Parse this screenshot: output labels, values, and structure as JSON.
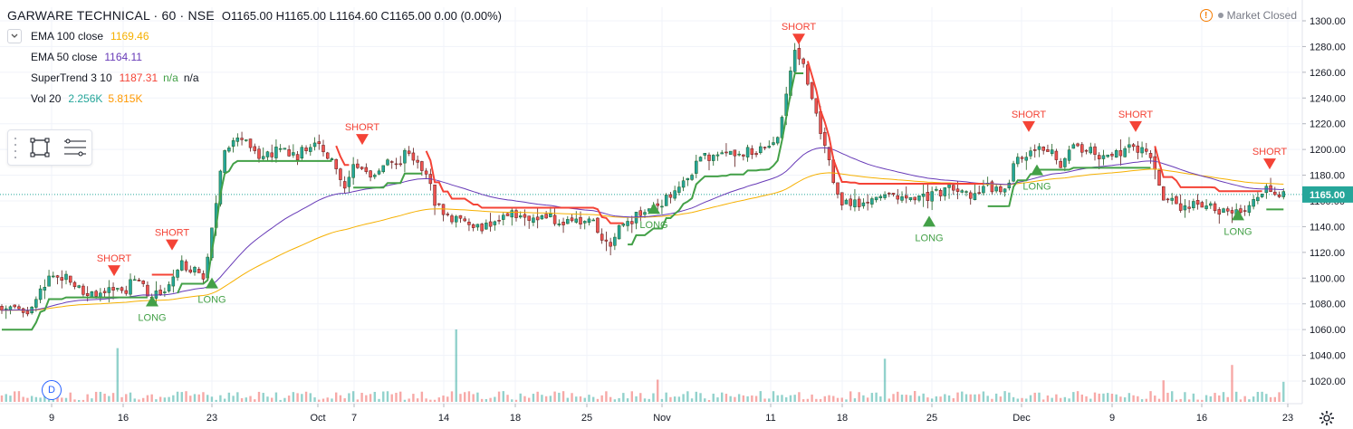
{
  "header": {
    "symbol": "GARWARE TECHNICAL · 60 · NSE",
    "ohlc": "O1165.00  H1165.00  L1164.60  C1165.00  0.00 (0.00%)"
  },
  "indicators": [
    {
      "name": "EMA 100 close",
      "value": "1169.46",
      "color": "#f6b000"
    },
    {
      "name": "EMA 50 close",
      "value": "1164.11",
      "color": "#673ab7"
    },
    {
      "name": "SuperTrend 3 10",
      "value": "1187.31",
      "extra1": "n/a",
      "extra2": "n/a",
      "color": "#f44336"
    },
    {
      "name": "Vol 20",
      "value": "2.256K",
      "value2": "5.815K",
      "color": "#26a69a",
      "color2": "#ff9800"
    }
  ],
  "market_status": "Market Closed",
  "interval_badge": "D",
  "colors": {
    "up": "#26a69a",
    "down": "#ef5350",
    "ema100": "#f6b000",
    "ema50": "#673ab7",
    "st_bear": "#f44336",
    "st_bull": "#43a047"
  },
  "chart_data": {
    "type": "candlestick",
    "yaxis_ticks": [
      "1300.00",
      "1280.00",
      "1260.00",
      "1240.00",
      "1220.00",
      "1200.00",
      "1180.00",
      "1160.00",
      "1140.00",
      "1120.00",
      "1100.00",
      "1080.00",
      "1060.00",
      "1040.00",
      "1020.00"
    ],
    "ylim": [
      1008,
      1302
    ],
    "last_price": "1165.00",
    "xaxis_ticks": [
      "9",
      "16",
      "23",
      "Oct",
      "7",
      "14",
      "18",
      "25",
      "Nov",
      "11",
      "18",
      "25",
      "Dec",
      "9",
      "16",
      "23"
    ],
    "signals": [
      {
        "label": "SHORT",
        "price": 1110
      },
      {
        "label": "LONG",
        "price": 1078
      },
      {
        "label": "SHORT",
        "price": 1130
      },
      {
        "label": "LONG",
        "price": 1092
      },
      {
        "label": "SHORT",
        "price": 1212
      },
      {
        "label": "LONG",
        "price": 1150
      },
      {
        "label": "SHORT",
        "price": 1290
      },
      {
        "label": "LONG",
        "price": 1140
      },
      {
        "label": "SHORT",
        "price": 1222
      },
      {
        "label": "LONG",
        "price": 1180
      },
      {
        "label": "SHORT",
        "price": 1222
      },
      {
        "label": "LONG",
        "price": 1145
      },
      {
        "label": "SHORT",
        "price": 1193
      }
    ],
    "price_path": [
      {
        "t": 0,
        "p": 1078
      },
      {
        "t": 3,
        "p": 1073
      },
      {
        "t": 5,
        "p": 1100
      },
      {
        "t": 7,
        "p": 1102
      },
      {
        "t": 9,
        "p": 1088
      },
      {
        "t": 11,
        "p": 1085
      },
      {
        "t": 13,
        "p": 1092
      },
      {
        "t": 15,
        "p": 1098
      },
      {
        "t": 16,
        "p": 1082
      },
      {
        "t": 18,
        "p": 1090
      },
      {
        "t": 19,
        "p": 1110
      },
      {
        "t": 21,
        "p": 1108
      },
      {
        "t": 22,
        "p": 1098
      },
      {
        "t": 23,
        "p": 1150
      },
      {
        "t": 24,
        "p": 1200
      },
      {
        "t": 26,
        "p": 1210
      },
      {
        "t": 28,
        "p": 1195
      },
      {
        "t": 30,
        "p": 1200
      },
      {
        "t": 32,
        "p": 1195
      },
      {
        "t": 34,
        "p": 1205
      },
      {
        "t": 36,
        "p": 1190
      },
      {
        "t": 37,
        "p": 1170
      },
      {
        "t": 38,
        "p": 1185
      },
      {
        "t": 40,
        "p": 1180
      },
      {
        "t": 42,
        "p": 1190
      },
      {
        "t": 44,
        "p": 1195
      },
      {
        "t": 46,
        "p": 1180
      },
      {
        "t": 47,
        "p": 1160
      },
      {
        "t": 48,
        "p": 1150
      },
      {
        "t": 50,
        "p": 1145
      },
      {
        "t": 52,
        "p": 1138
      },
      {
        "t": 54,
        "p": 1145
      },
      {
        "t": 56,
        "p": 1150
      },
      {
        "t": 58,
        "p": 1148
      },
      {
        "t": 60,
        "p": 1146
      },
      {
        "t": 62,
        "p": 1143
      },
      {
        "t": 64,
        "p": 1145
      },
      {
        "t": 66,
        "p": 1120
      },
      {
        "t": 67,
        "p": 1140
      },
      {
        "t": 69,
        "p": 1150
      },
      {
        "t": 71,
        "p": 1155
      },
      {
        "t": 73,
        "p": 1170
      },
      {
        "t": 75,
        "p": 1185
      },
      {
        "t": 76,
        "p": 1195
      },
      {
        "t": 78,
        "p": 1198
      },
      {
        "t": 80,
        "p": 1200
      },
      {
        "t": 82,
        "p": 1198
      },
      {
        "t": 84,
        "p": 1205
      },
      {
        "t": 85,
        "p": 1240
      },
      {
        "t": 86,
        "p": 1280
      },
      {
        "t": 87,
        "p": 1265
      },
      {
        "t": 88,
        "p": 1235
      },
      {
        "t": 89,
        "p": 1210
      },
      {
        "t": 90,
        "p": 1180
      },
      {
        "t": 91,
        "p": 1160
      },
      {
        "t": 93,
        "p": 1155
      },
      {
        "t": 95,
        "p": 1162
      },
      {
        "t": 97,
        "p": 1165
      },
      {
        "t": 99,
        "p": 1160
      },
      {
        "t": 101,
        "p": 1165
      },
      {
        "t": 103,
        "p": 1170
      },
      {
        "t": 105,
        "p": 1165
      },
      {
        "t": 107,
        "p": 1170
      },
      {
        "t": 109,
        "p": 1168
      },
      {
        "t": 110,
        "p": 1195
      },
      {
        "t": 112,
        "p": 1200
      },
      {
        "t": 114,
        "p": 1198
      },
      {
        "t": 115,
        "p": 1185
      },
      {
        "t": 116,
        "p": 1205
      },
      {
        "t": 118,
        "p": 1200
      },
      {
        "t": 120,
        "p": 1195
      },
      {
        "t": 122,
        "p": 1200
      },
      {
        "t": 124,
        "p": 1198
      },
      {
        "t": 125,
        "p": 1185
      },
      {
        "t": 126,
        "p": 1160
      },
      {
        "t": 128,
        "p": 1158
      },
      {
        "t": 130,
        "p": 1155
      },
      {
        "t": 132,
        "p": 1153
      },
      {
        "t": 134,
        "p": 1152
      },
      {
        "t": 136,
        "p": 1160
      },
      {
        "t": 137,
        "p": 1170
      },
      {
        "t": 138,
        "p": 1165
      },
      {
        "t": 139,
        "p": 1165
      }
    ]
  }
}
